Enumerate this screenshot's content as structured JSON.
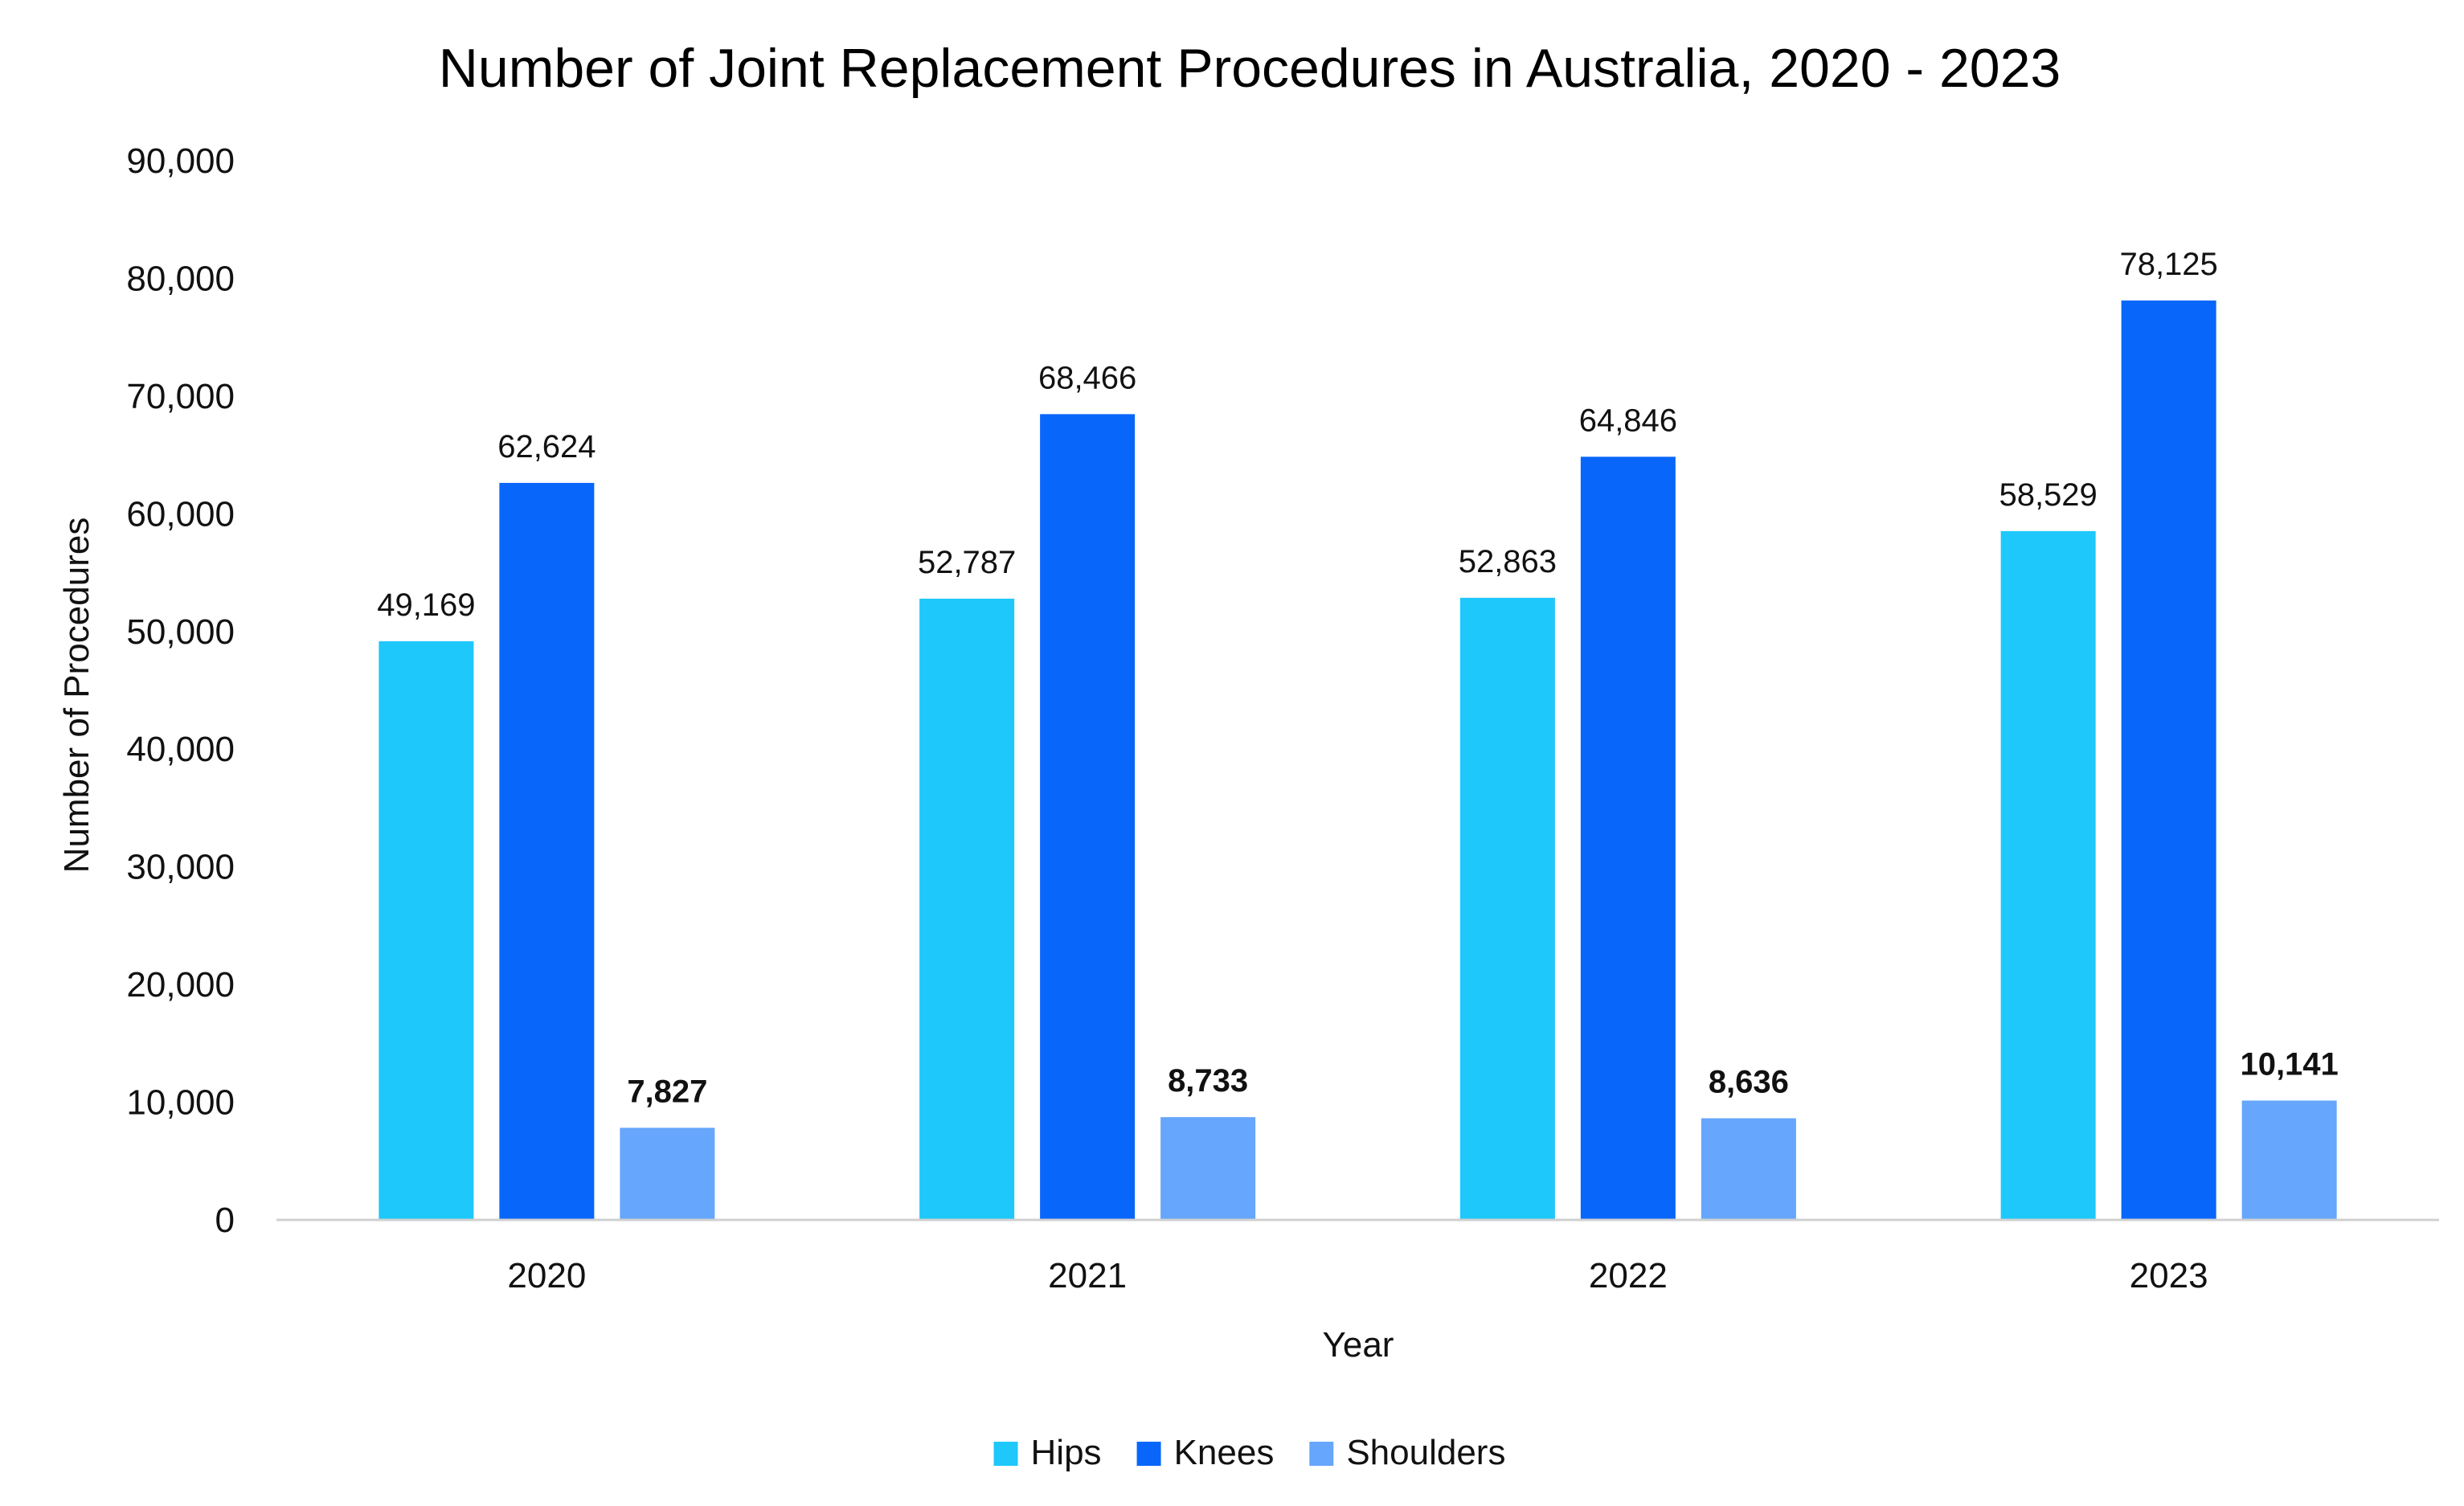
{
  "chart_data": {
    "type": "bar",
    "title": "Number of Joint Replacement Procedures in Australia, 2020 - 2023",
    "xlabel": "Year",
    "ylabel": "Number of Procedures",
    "categories": [
      "2020",
      "2021",
      "2022",
      "2023"
    ],
    "ylim": [
      0,
      90000
    ],
    "yticks": [
      0,
      10000,
      20000,
      30000,
      40000,
      50000,
      60000,
      70000,
      80000,
      90000
    ],
    "ytick_labels": [
      "0",
      "10,000",
      "20,000",
      "30,000",
      "40,000",
      "50,000",
      "60,000",
      "70,000",
      "80,000",
      "90,000"
    ],
    "grid": false,
    "legend_position": "bottom-center",
    "series": [
      {
        "name": "Hips",
        "color": "#1EC8FA",
        "values": [
          49169,
          52787,
          52863,
          58529
        ],
        "labels": [
          "49,169",
          "52,787",
          "52,863",
          "58,529"
        ],
        "label_bold": false
      },
      {
        "name": "Knees",
        "color": "#0866FA",
        "values": [
          62624,
          68466,
          64846,
          78125
        ],
        "labels": [
          "62,624",
          "68,466",
          "64,846",
          "78,125"
        ],
        "label_bold": false
      },
      {
        "name": "Shoulders",
        "color": "#66A6FC",
        "values": [
          7827,
          8733,
          8636,
          10141
        ],
        "labels": [
          "7,827",
          "8,733",
          "8,636",
          "10,141"
        ],
        "label_bold": true
      }
    ]
  }
}
